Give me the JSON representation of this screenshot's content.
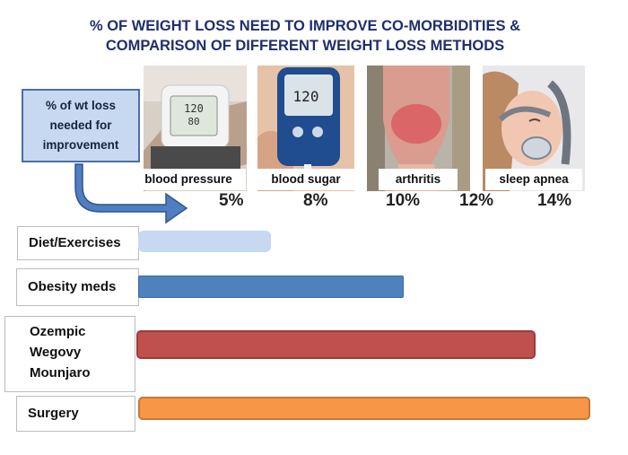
{
  "title": {
    "line1": "% OF  WEIGHT LOSS NEED TO IMPROVE CO-MORBIDITIES &",
    "line2": "COMPARISON OF  DIFFERENT WEIGHT LOSS METHODS"
  },
  "callout": {
    "line1": "% of wt loss",
    "line2": "needed for",
    "line3": "improvement"
  },
  "comorbidities": [
    {
      "label": "blood pressure",
      "pct": "5%",
      "value": 5
    },
    {
      "label": "blood sugar",
      "pct": "8%",
      "value": 8
    },
    {
      "label": "arthritis",
      "pct": "10%",
      "value": 10
    },
    {
      "label": "",
      "pct": "12%",
      "value": 12
    },
    {
      "label": "sleep apnea",
      "pct": "14%",
      "value": 14
    }
  ],
  "chart_data": {
    "type": "bar",
    "orientation": "horizontal",
    "categories": [
      "Diet/Exercises",
      "Obesity meds",
      "Ozempic Wegovy Mounjaro",
      "Surgery"
    ],
    "values": [
      5,
      10,
      15,
      17
    ],
    "colors": [
      "#c6d9f1",
      "#4f81bd",
      "#c0504d",
      "#f79646"
    ],
    "title": "% OF  WEIGHT LOSS NEED TO IMPROVE CO-MORBIDITIES & COMPARISON OF  DIFFERENT WEIGHT LOSS METHODS",
    "xlabel": "",
    "ylabel": "",
    "xlim": [
      0,
      17
    ],
    "grid": false,
    "legend": "none"
  },
  "methods": [
    {
      "lines": [
        "Diet/Exercises"
      ]
    },
    {
      "lines": [
        "Obesity meds"
      ]
    },
    {
      "lines": [
        "Ozempic",
        "Wegovy",
        "Mounjaro"
      ]
    },
    {
      "lines": [
        "Surgery"
      ]
    }
  ],
  "icons": [
    "blood-pressure-monitor-icon",
    "glucose-meter-icon",
    "swollen-knee-icon",
    "cpap-mask-icon",
    "curved-arrow-icon"
  ]
}
